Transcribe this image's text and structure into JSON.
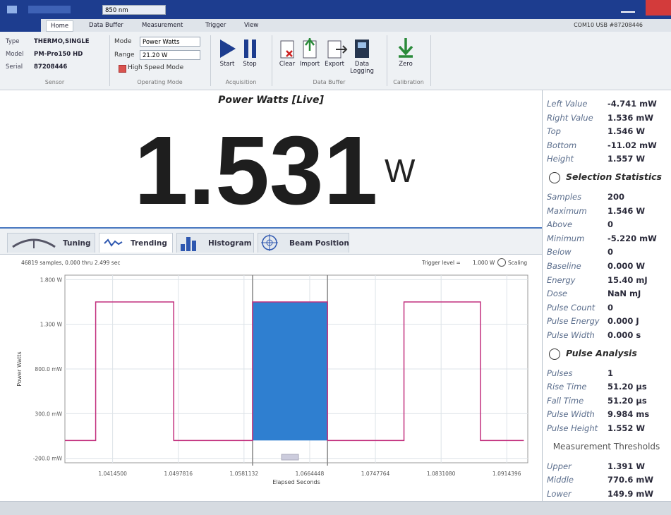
{
  "title_bar": {
    "wavelength": "850 nm"
  },
  "menu": {
    "tabs": [
      "Home",
      "Data Buffer",
      "Measurement",
      "Trigger",
      "View"
    ],
    "device": "COM10 USB #87208446"
  },
  "ribbon": {
    "sensor": {
      "rows": [
        [
          "Type",
          "THERMO,SINGLE"
        ],
        [
          "Model",
          "PM-Pro150 HD"
        ],
        [
          "Serial",
          "87208446"
        ]
      ],
      "label": "Sensor"
    },
    "operating_mode": {
      "mode_label": "Mode",
      "mode": "Power Watts",
      "range_label": "Range",
      "range": "21.20 W",
      "high_speed": "High Speed Mode",
      "label": "Operating Mode"
    },
    "acquisition": {
      "buttons": [
        "Start",
        "Stop"
      ],
      "label": "Acquisition"
    },
    "data_buffer": {
      "buttons": [
        "Clear",
        "Import",
        "Export",
        "Data Logging"
      ],
      "label": "Data Buffer"
    },
    "calibration": {
      "buttons": [
        "Zero"
      ],
      "label": "Calibration"
    }
  },
  "live": {
    "title": "Power Watts [Live]",
    "value": "1.531",
    "unit": "W"
  },
  "tabs": [
    "Tuning",
    "Trending",
    "Histogram",
    "Beam Position"
  ],
  "trend_info": {
    "samples": "46819 samples, 0.000 thru 2.499 sec",
    "trigger": "Trigger level =",
    "trigger_value": "1.000 W",
    "scaling": "Scaling"
  },
  "chart_data": {
    "type": "line",
    "x_label": "Elapsed Seconds",
    "y_label": "Power Watts",
    "x": [
      1.0354,
      1.0393,
      1.0393,
      1.0492,
      1.0492,
      1.0592,
      1.0592,
      1.0687,
      1.0687,
      1.0784,
      1.0784,
      1.0881,
      1.0881,
      1.0936
    ],
    "values": [
      0,
      0,
      1.55,
      1.55,
      0,
      0,
      1.55,
      1.55,
      0,
      0,
      1.55,
      1.55,
      0,
      0
    ],
    "color": "#c2307e",
    "selection": {
      "x": [
        1.0592,
        1.0687
      ],
      "color": "#2f7fd0"
    },
    "xlim": [
      1.0354,
      1.0941
    ],
    "ylim": [
      -0.25,
      1.85
    ],
    "xticks": [
      {
        "value": 1.04145,
        "label": "1.0414500"
      },
      1.0497816,
      1.0581132,
      1.0664448,
      1.0747764,
      {
        "value": 1.083108,
        "label": "1.0831080"
      },
      1.0914396
    ],
    "yticks": [
      {
        "value": 1.8,
        "label": "1.800 W"
      },
      {
        "value": 1.3,
        "label": "1.300 W"
      },
      {
        "value": 0.8,
        "label": "800.0 mW"
      },
      {
        "value": 0.3,
        "label": "300.0 mW"
      },
      {
        "value": -0.2,
        "label": "-200.0 mW"
      }
    ],
    "grid": true
  },
  "stats": [
    {
      "rows": [
        [
          "Left Value",
          "-4.741 mW"
        ],
        [
          "Right Value",
          "1.536 mW"
        ],
        [
          "Top",
          "1.546 W"
        ],
        [
          "Bottom",
          "-11.02 mW"
        ],
        [
          "Height",
          "1.557 W"
        ]
      ]
    },
    {
      "header": "Selection Statistics",
      "rows": [
        [
          "Samples",
          "200"
        ],
        [
          "Maximum",
          "1.546 W"
        ],
        [
          "Above",
          "0"
        ],
        [
          "Minimum",
          "-5.220 mW"
        ],
        [
          "Below",
          "0"
        ],
        [
          "Baseline",
          "0.000 W"
        ],
        [
          "Energy",
          "15.40 mJ"
        ],
        [
          "Dose",
          "NaN mJ"
        ],
        [
          "Pulse Count",
          "0"
        ],
        [
          "Pulse Energy",
          "0.000 J"
        ],
        [
          "Pulse Width",
          "0.000 s"
        ]
      ]
    },
    {
      "header": "Pulse Analysis",
      "rows": [
        [
          "Pulses",
          "1"
        ],
        [
          "Rise Time",
          "51.20 µs"
        ],
        [
          "Fall Time",
          "51.20 µs"
        ],
        [
          "Pulse Width",
          "9.984 ms"
        ],
        [
          "Pulse Height",
          "1.552 W"
        ]
      ]
    },
    {
      "header": "Measurement Thresholds",
      "rows": [
        [
          "Upper",
          "1.391 W"
        ],
        [
          "Middle",
          "770.6 mW"
        ],
        [
          "Lower",
          "149.9 mW"
        ]
      ]
    }
  ]
}
